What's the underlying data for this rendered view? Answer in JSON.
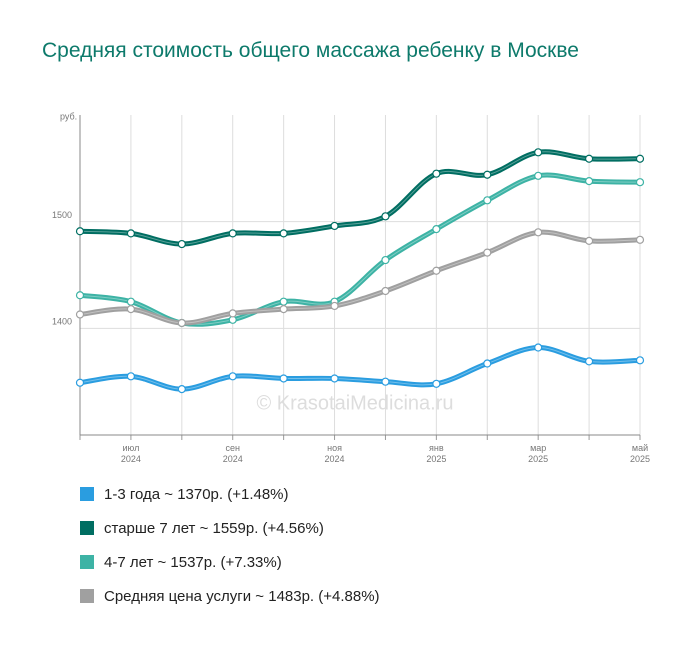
{
  "chart_data": {
    "type": "line",
    "title": "Средняя стоимость общего массажа ребенку в Москве",
    "y_unit": "руб.",
    "watermark": "© KrasotaiMedicina.ru",
    "categories": [
      null,
      "июл 2024",
      null,
      "сен 2024",
      null,
      "ноя 2024",
      null,
      "янв 2025",
      null,
      "мар 2025",
      null,
      "май 2025"
    ],
    "ylim": [
      1300,
      1600
    ],
    "yticks": [
      1400,
      1500
    ],
    "grid": true,
    "legend": "bottom",
    "series": [
      {
        "name": "1-3 года ~ 1370р. (+1.48%)",
        "color": "#2a9de0",
        "values": [
          1349,
          1355,
          1343,
          1355,
          1353,
          1353,
          1350,
          1348,
          1367,
          1382,
          1369,
          1370
        ]
      },
      {
        "name": "старше 7 лет ~ 1559р. (+4.56%)",
        "color": "#006e62",
        "values": [
          1491,
          1489,
          1479,
          1489,
          1489,
          1496,
          1505,
          1545,
          1544,
          1565,
          1559,
          1559
        ]
      },
      {
        "name": "4-7 лет ~ 1537р. (+7.33%)",
        "color": "#3db3a5",
        "values": [
          1431,
          1425,
          1405,
          1408,
          1425,
          1425,
          1464,
          1493,
          1520,
          1543,
          1538,
          1537
        ]
      },
      {
        "name": "Средняя цена услуги ~ 1483р. (+4.88%)",
        "color": "#a0a0a0",
        "values": [
          1413,
          1418,
          1405,
          1414,
          1418,
          1421,
          1435,
          1454,
          1471,
          1490,
          1482,
          1483
        ]
      }
    ]
  }
}
